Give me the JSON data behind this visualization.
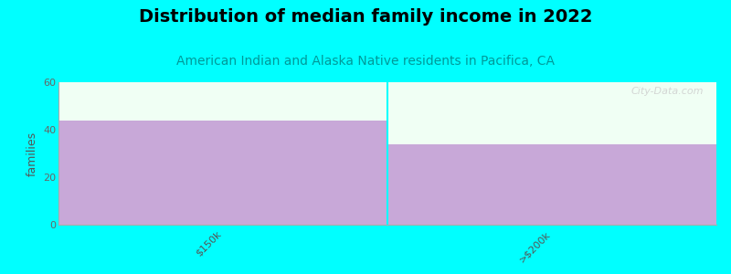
{
  "title": "Distribution of median family income in 2022",
  "subtitle": "American Indian and Alaska Native residents in Pacifica, CA",
  "categories": [
    "$150k",
    ">$200k"
  ],
  "values": [
    44,
    34
  ],
  "bar_color": "#C8A8D8",
  "background_color": "#00FFFF",
  "plot_bg_color": "#F0FFF4",
  "ylabel": "families",
  "ylim": [
    0,
    60
  ],
  "yticks": [
    0,
    20,
    40,
    60
  ],
  "title_fontsize": 14,
  "subtitle_fontsize": 10,
  "subtitle_color": "#009999",
  "watermark": "City-Data.com"
}
